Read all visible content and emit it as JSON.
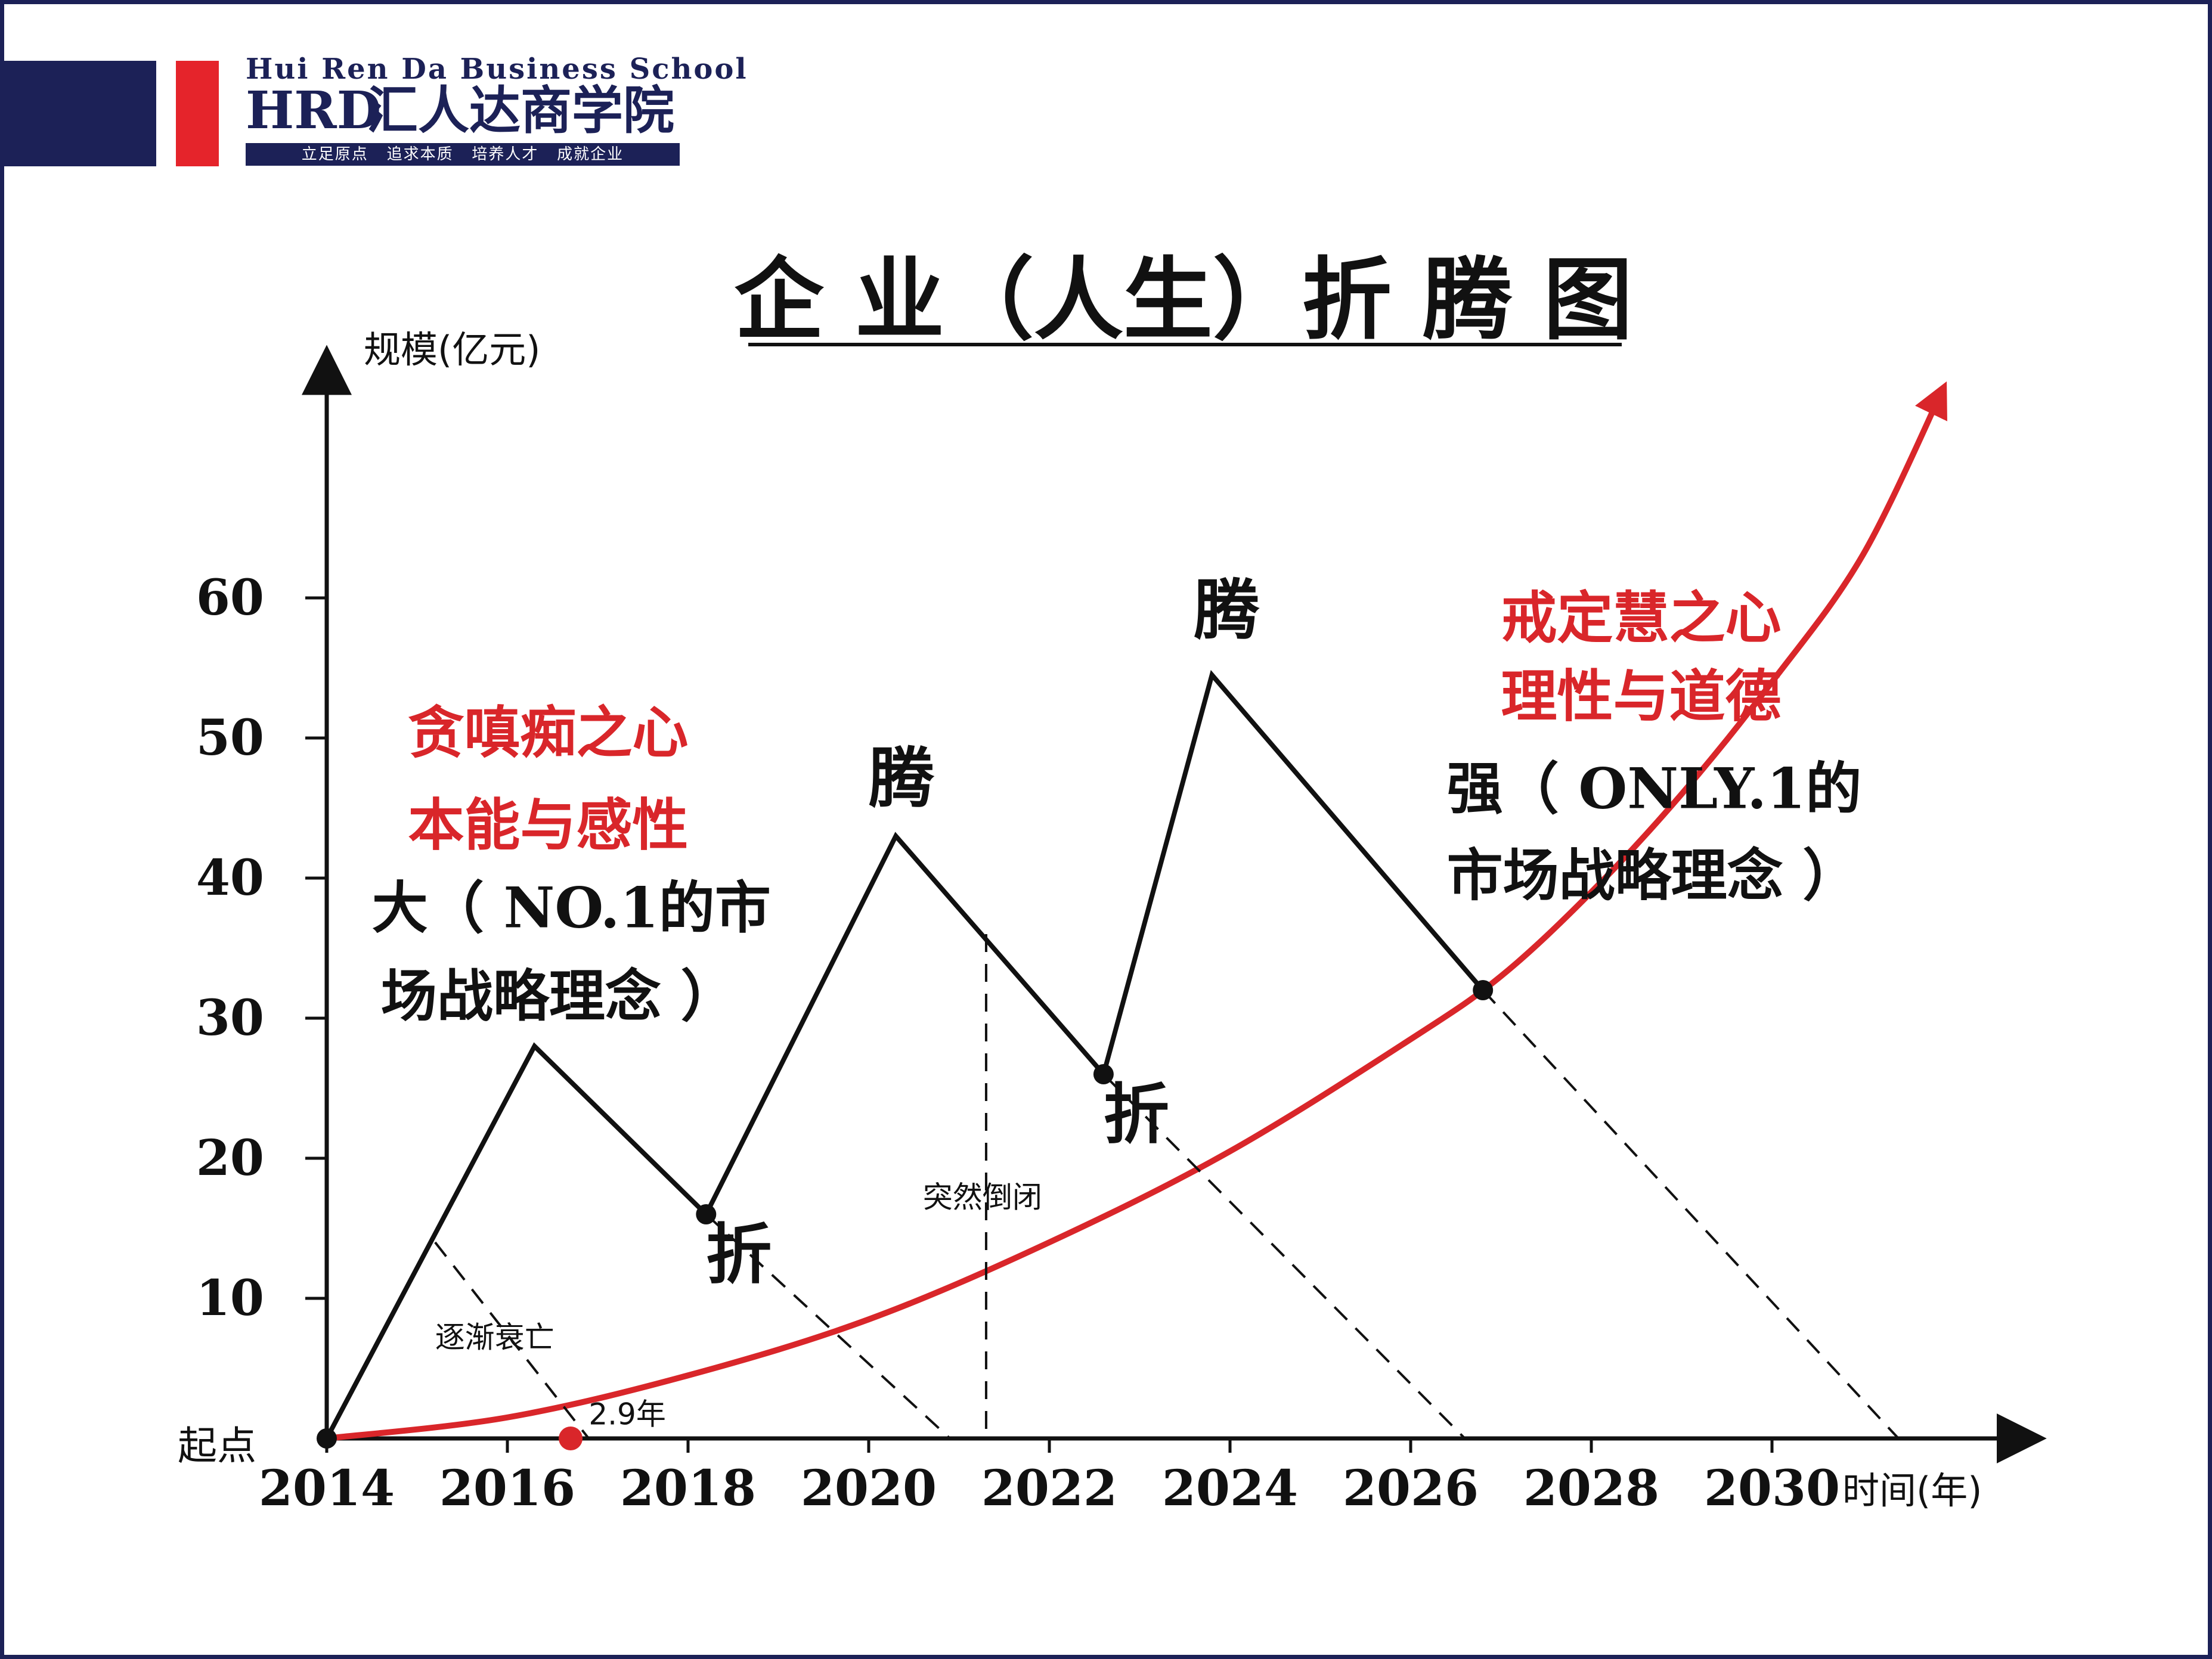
{
  "brand": {
    "english_name": "Hui Ren Da Business School",
    "abbr": "HRD",
    "chinese_name": "汇人达商学院",
    "slogan": "立足原点   追求本质   培养人才   成就企业",
    "colors": {
      "navy": "#1c2157",
      "red": "#e5242b"
    }
  },
  "chart_data": {
    "type": "line",
    "title": "企 业（人生）折 腾 图",
    "ylabel": "规模(亿元)",
    "xlabel": "时间(年)",
    "xlim": [
      2014,
      2032.5
    ],
    "ylim": [
      0,
      75
    ],
    "x_ticks": [
      "2014",
      "2016",
      "2018",
      "2020",
      "2022",
      "2024",
      "2026",
      "2028",
      "2030"
    ],
    "y_ticks": [
      "10",
      "20",
      "30",
      "40",
      "50",
      "60"
    ],
    "origin_label": "起点",
    "series": [
      {
        "role": "zigzag",
        "color": "#111111",
        "points": [
          [
            2014.0,
            0
          ],
          [
            2016.3,
            28
          ],
          [
            2018.2,
            16
          ],
          [
            2020.3,
            43
          ],
          [
            2022.6,
            26
          ],
          [
            2023.8,
            54.5
          ],
          [
            2026.8,
            32
          ]
        ]
      },
      {
        "role": "growth-curve",
        "color": "#d9262a",
        "points": [
          [
            2014.0,
            0
          ],
          [
            2016.0,
            1.5
          ],
          [
            2018.0,
            4.5
          ],
          [
            2020.0,
            8.5
          ],
          [
            2022.0,
            14
          ],
          [
            2024.0,
            20.5
          ],
          [
            2026.0,
            28.5
          ],
          [
            2027.0,
            33
          ],
          [
            2028.0,
            39
          ],
          [
            2029.0,
            46
          ],
          [
            2030.0,
            54
          ],
          [
            2031.0,
            63
          ],
          [
            2031.9,
            75
          ]
        ]
      },
      {
        "role": "decline-dashed",
        "color": "#111111",
        "segments": [
          [
            [
              2015.2,
              14
            ],
            [
              2016.9,
              0
            ]
          ],
          [
            [
              2018.2,
              16
            ],
            [
              2020.9,
              0
            ]
          ],
          [
            [
              2022.6,
              26
            ],
            [
              2026.6,
              0
            ]
          ],
          [
            [
              2026.8,
              32
            ],
            [
              2031.4,
              0
            ]
          ]
        ]
      },
      {
        "role": "vertical-dashed",
        "color": "#111111",
        "segments": [
          [
            [
              2021.3,
              36
            ],
            [
              2021.3,
              0
            ]
          ]
        ]
      }
    ],
    "markers": [
      {
        "x": 2014.0,
        "y": 0,
        "color": "#111111"
      },
      {
        "x": 2018.2,
        "y": 16,
        "color": "#111111"
      },
      {
        "x": 2022.6,
        "y": 26,
        "color": "#111111"
      },
      {
        "x": 2026.8,
        "y": 32,
        "color": "#111111"
      },
      {
        "x": 2016.7,
        "y": 0,
        "color": "#d9262a"
      }
    ],
    "annotations": [
      {
        "id": "peak1",
        "text": "腾",
        "x": 2020.0,
        "y": 45.5,
        "color": "#111111",
        "size": "large"
      },
      {
        "id": "peak2",
        "text": "腾",
        "x": 2023.6,
        "y": 57.5,
        "color": "#111111",
        "size": "large"
      },
      {
        "id": "fold1",
        "text": "折",
        "x": 2018.2,
        "y": 11.5,
        "color": "#111111",
        "size": "large"
      },
      {
        "id": "fold2",
        "text": "折",
        "x": 2022.6,
        "y": 21.5,
        "color": "#111111",
        "size": "large"
      },
      {
        "id": "big-line1",
        "text": "大（ NO.1的市",
        "x": 2014.5,
        "y": 36.5,
        "color": "#111111",
        "size": "medium"
      },
      {
        "id": "big-line2",
        "text": "场战略理念 ）",
        "x": 2014.6,
        "y": 30.2,
        "color": "#111111",
        "size": "medium"
      },
      {
        "id": "greed-line1",
        "text": "贪嗔痴之心",
        "x": 2014.9,
        "y": 49.0,
        "color": "#d9262a",
        "size": "medium"
      },
      {
        "id": "greed-line2",
        "text": "本能与感性",
        "x": 2014.9,
        "y": 42.4,
        "color": "#d9262a",
        "size": "medium"
      },
      {
        "id": "wisdom-line1",
        "text": "戒定慧之心",
        "x": 2027.0,
        "y": 57.2,
        "color": "#d9262a",
        "size": "medium"
      },
      {
        "id": "wisdom-line2",
        "text": "理性与道德",
        "x": 2027.0,
        "y": 51.6,
        "color": "#d9262a",
        "size": "medium"
      },
      {
        "id": "strong-line1",
        "text": "强（ ONLY.1的",
        "x": 2026.4,
        "y": 45.0,
        "color": "#111111",
        "size": "medium"
      },
      {
        "id": "strong-line2",
        "text": "市场战略理念 ）",
        "x": 2026.4,
        "y": 38.8,
        "color": "#111111",
        "size": "medium"
      },
      {
        "id": "collapse",
        "text": "突然倒闭",
        "x": 2020.6,
        "y": 16.5,
        "color": "#111111",
        "size": "small"
      },
      {
        "id": "decline",
        "text": "逐渐衰亡",
        "x": 2015.2,
        "y": 6.5,
        "color": "#111111",
        "size": "small"
      },
      {
        "id": "lifespan",
        "text": "2.9年",
        "x": 2016.9,
        "y": 1.0,
        "color": "#111111",
        "size": "small"
      }
    ]
  }
}
